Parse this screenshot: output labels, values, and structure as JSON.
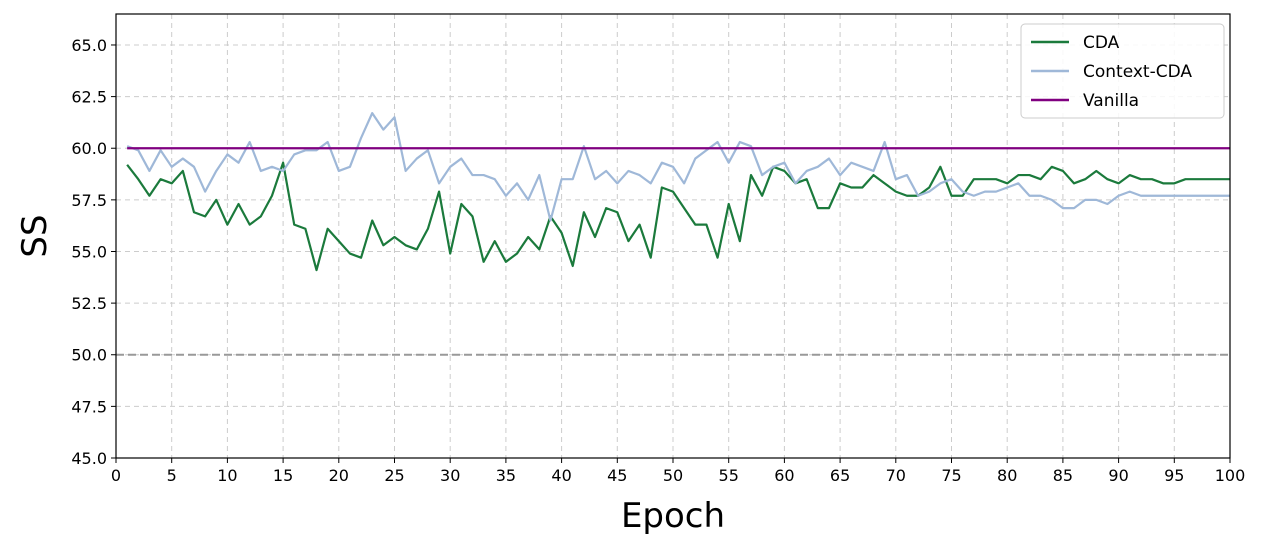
{
  "chart_data": {
    "type": "line",
    "title": "",
    "xlabel": "Epoch",
    "ylabel": "SS",
    "xlim": [
      0,
      100
    ],
    "ylim": [
      45,
      66.5
    ],
    "xticks": [
      0,
      5,
      10,
      15,
      20,
      25,
      30,
      35,
      40,
      45,
      50,
      55,
      60,
      65,
      70,
      75,
      80,
      85,
      90,
      95,
      100
    ],
    "yticks": [
      45.0,
      47.5,
      50.0,
      52.5,
      55.0,
      57.5,
      60.0,
      62.5,
      65.0
    ],
    "xtick_labels": [
      "0",
      "5",
      "10",
      "15",
      "20",
      "25",
      "30",
      "35",
      "40",
      "45",
      "50",
      "55",
      "60",
      "65",
      "70",
      "75",
      "80",
      "85",
      "90",
      "95",
      "100"
    ],
    "ytick_labels": [
      "45.0",
      "47.5",
      "50.0",
      "52.5",
      "55.0",
      "57.5",
      "60.0",
      "62.5",
      "65.0"
    ],
    "grid": true,
    "legend_position": "top-right",
    "x": [
      1,
      2,
      3,
      4,
      5,
      6,
      7,
      8,
      9,
      10,
      11,
      12,
      13,
      14,
      15,
      16,
      17,
      18,
      19,
      20,
      21,
      22,
      23,
      24,
      25,
      26,
      27,
      28,
      29,
      30,
      31,
      32,
      33,
      34,
      35,
      36,
      37,
      38,
      39,
      40,
      41,
      42,
      43,
      44,
      45,
      46,
      47,
      48,
      49,
      50,
      51,
      52,
      53,
      54,
      55,
      56,
      57,
      58,
      59,
      60,
      61,
      62,
      63,
      64,
      65,
      66,
      67,
      68,
      69,
      70,
      71,
      72,
      73,
      74,
      75,
      76,
      77,
      78,
      79,
      80,
      81,
      82,
      83,
      84,
      85,
      86,
      87,
      88,
      89,
      90,
      91,
      92,
      93,
      94,
      95,
      96,
      97,
      98,
      99,
      100
    ],
    "series": [
      {
        "name": "CDA",
        "color": "#1b7a3c",
        "values": [
          59.2,
          58.5,
          57.7,
          58.5,
          58.3,
          58.9,
          56.9,
          56.7,
          57.5,
          56.3,
          57.3,
          56.3,
          56.7,
          57.7,
          59.3,
          56.3,
          56.1,
          54.1,
          56.1,
          55.5,
          54.9,
          54.7,
          56.5,
          55.3,
          55.7,
          55.3,
          55.1,
          56.1,
          57.9,
          54.9,
          57.3,
          56.7,
          54.5,
          55.5,
          54.5,
          54.9,
          55.7,
          55.1,
          56.7,
          55.9,
          54.3,
          56.9,
          55.7,
          57.1,
          56.9,
          55.5,
          56.3,
          54.7,
          58.1,
          57.9,
          57.1,
          56.3,
          56.3,
          54.7,
          57.3,
          55.5,
          58.7,
          57.7,
          59.1,
          58.9,
          58.3,
          58.5,
          57.1,
          57.1,
          58.3,
          58.1,
          58.1,
          58.7,
          58.3,
          57.9,
          57.7,
          57.7,
          58.1,
          59.1,
          57.7,
          57.7,
          58.5,
          58.5,
          58.5,
          58.3,
          58.7,
          58.7,
          58.5,
          59.1,
          58.9,
          58.3,
          58.5,
          58.9,
          58.5,
          58.3,
          58.7,
          58.5,
          58.5,
          58.3,
          58.3,
          58.5,
          58.5,
          58.5,
          58.5,
          58.5
        ]
      },
      {
        "name": "Context-CDA",
        "color": "#9fb8d8",
        "values": [
          60.1,
          59.9,
          58.9,
          59.9,
          59.1,
          59.5,
          59.1,
          57.9,
          58.9,
          59.7,
          59.3,
          60.3,
          58.9,
          59.1,
          58.9,
          59.7,
          59.9,
          59.9,
          60.3,
          58.9,
          59.1,
          60.5,
          61.7,
          60.9,
          61.5,
          58.9,
          59.5,
          59.9,
          58.3,
          59.1,
          59.5,
          58.7,
          58.7,
          58.5,
          57.7,
          58.3,
          57.5,
          58.7,
          56.5,
          58.5,
          58.5,
          60.1,
          58.5,
          58.9,
          58.3,
          58.9,
          58.7,
          58.3,
          59.3,
          59.1,
          58.3,
          59.5,
          59.9,
          60.3,
          59.3,
          60.3,
          60.1,
          58.7,
          59.1,
          59.3,
          58.3,
          58.9,
          59.1,
          59.5,
          58.7,
          59.3,
          59.1,
          58.9,
          60.3,
          58.5,
          58.7,
          57.7,
          57.9,
          58.3,
          58.5,
          57.9,
          57.7,
          57.9,
          57.9,
          58.1,
          58.3,
          57.7,
          57.7,
          57.5,
          57.1,
          57.1,
          57.5,
          57.5,
          57.3,
          57.7,
          57.9,
          57.7,
          57.7,
          57.7,
          57.7,
          57.7,
          57.7,
          57.7,
          57.7,
          57.7
        ]
      },
      {
        "name": "Vanilla",
        "color": "#800080",
        "values": [
          60,
          60,
          60,
          60,
          60,
          60,
          60,
          60,
          60,
          60,
          60,
          60,
          60,
          60,
          60,
          60,
          60,
          60,
          60,
          60,
          60,
          60,
          60,
          60,
          60,
          60,
          60,
          60,
          60,
          60,
          60,
          60,
          60,
          60,
          60,
          60,
          60,
          60,
          60,
          60,
          60,
          60,
          60,
          60,
          60,
          60,
          60,
          60,
          60,
          60,
          60,
          60,
          60,
          60,
          60,
          60,
          60,
          60,
          60,
          60,
          60,
          60,
          60,
          60,
          60,
          60,
          60,
          60,
          60,
          60,
          60,
          60,
          60,
          60,
          60,
          60,
          60,
          60,
          60,
          60,
          60,
          60,
          60,
          60,
          60,
          60,
          60,
          60,
          60,
          60,
          60,
          60,
          60,
          60,
          60,
          60,
          60,
          60,
          60,
          60
        ]
      }
    ],
    "reference_line": {
      "y": 50.0,
      "color": "#999999",
      "style": "dashed"
    },
    "colors": {
      "grid": "#cccccc",
      "axes": "#000000"
    }
  }
}
